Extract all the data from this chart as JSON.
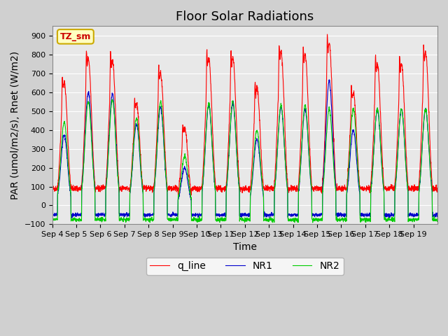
{
  "title": "Floor Solar Radiations",
  "xlabel": "Time",
  "ylabel": "PAR (umol/m2/s), Rnet (W/m2)",
  "ylim": [
    -100,
    950
  ],
  "yticks": [
    -100,
    0,
    100,
    200,
    300,
    400,
    500,
    600,
    700,
    800,
    900
  ],
  "xtick_labels": [
    "Sep 4",
    "Sep 5",
    "Sep 6",
    "Sep 7",
    "Sep 8",
    "Sep 9",
    "Sep 10",
    "Sep 11",
    "Sep 12",
    "Sep 13",
    "Sep 14",
    "Sep 15",
    "Sep 16",
    "Sep 17",
    "Sep 18",
    "Sep 19"
  ],
  "legend_labels": [
    "q_line",
    "NR1",
    "NR2"
  ],
  "legend_colors": [
    "#ff0000",
    "#0000cc",
    "#00cc00"
  ],
  "box_label": "TZ_sm",
  "box_facecolor": "#ffffc0",
  "box_edgecolor": "#ccaa00",
  "plot_bg_color": "#e8e8e8",
  "title_fontsize": 13,
  "label_fontsize": 10,
  "tick_fontsize": 8,
  "num_days": 16,
  "points_per_day": 144,
  "q_line_base": 90,
  "NR1_night": -50,
  "NR2_night": -75,
  "day_peaks_q": [
    650,
    780,
    770,
    540,
    700,
    410,
    780,
    780,
    620,
    810,
    800,
    860,
    600,
    750,
    750,
    810
  ],
  "day_peaks_NR1": [
    370,
    600,
    590,
    430,
    520,
    200,
    530,
    540,
    350,
    520,
    510,
    660,
    400,
    510,
    510,
    510
  ],
  "day_peaks_NR2": [
    440,
    550,
    560,
    460,
    550,
    260,
    540,
    550,
    400,
    530,
    530,
    510,
    510,
    510,
    510,
    510
  ]
}
